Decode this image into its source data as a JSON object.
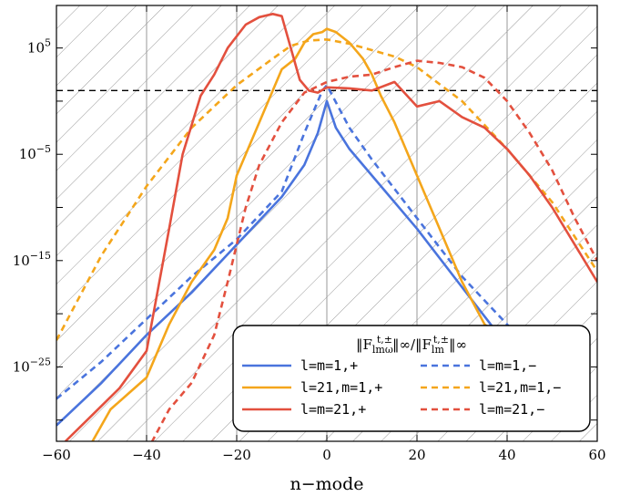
{
  "chart_data": {
    "type": "line",
    "title": "",
    "xlabel": "n−mode",
    "ylabel": "",
    "xlim": [
      -60,
      60
    ],
    "ylim_log10": [
      -32,
      9
    ],
    "y_scale": "log",
    "grid": true,
    "hatched_background": true,
    "reference_line": {
      "y_log10": 1,
      "style": "dashed",
      "color": "#000000"
    },
    "x_ticks": [
      {
        "value": -60,
        "label": "−60"
      },
      {
        "value": -40,
        "label": "−40"
      },
      {
        "value": -20,
        "label": "−20"
      },
      {
        "value": 0,
        "label": "0"
      },
      {
        "value": 20,
        "label": "20"
      },
      {
        "value": 40,
        "label": "40"
      },
      {
        "value": 60,
        "label": "60"
      }
    ],
    "y_ticks": [
      {
        "value_log10": 5,
        "base": "10",
        "exp": "5"
      },
      {
        "value_log10": -5,
        "base": "10",
        "exp": "−5"
      },
      {
        "value_log10": -15,
        "base": "10",
        "exp": "−15"
      },
      {
        "value_log10": -25,
        "base": "10",
        "exp": "−25"
      }
    ],
    "legend": {
      "placement": "lower-right",
      "title": "‖F_lmω^{t,±}‖∞/‖F_lm^{t,±}‖∞",
      "title_parts": {
        "bar1": "‖F",
        "sub1": "lmω",
        "sup1": "t,±",
        "mid": "‖∞/‖F",
        "sub2": "lm",
        "sup2": "t,±",
        "end": "‖∞"
      }
    },
    "series": [
      {
        "name": "l=m=1,+",
        "color": "#4a74dd",
        "dash": "solid",
        "x": [
          -60,
          -50,
          -40,
          -30,
          -20,
          -10,
          -5,
          -2,
          0,
          2,
          5,
          10,
          20,
          30,
          40,
          45
        ],
        "y_log10": [
          -30.5,
          -26.5,
          -22,
          -18,
          -13.5,
          -9,
          -6,
          -3,
          0,
          -2.5,
          -4.5,
          -7,
          -12,
          -17.5,
          -23,
          -26
        ]
      },
      {
        "name": "l=m=1,−",
        "color": "#4a74dd",
        "dash": "dashed",
        "x": [
          -60,
          -50,
          -40,
          -30,
          -20,
          -10,
          -5,
          -1,
          0,
          5,
          10,
          20,
          30,
          40,
          45
        ],
        "y_log10": [
          -28,
          -24.5,
          -20.5,
          -16.5,
          -13,
          -8.5,
          -3,
          1,
          1.5,
          -2.5,
          -5.5,
          -11,
          -16.5,
          -21,
          -23.5
        ]
      },
      {
        "name": "l=21,m=1,+",
        "color": "#f4a61b",
        "dash": "solid",
        "x": [
          -52,
          -48,
          -44,
          -40,
          -35,
          -30,
          -25,
          -22,
          -20,
          -15,
          -10,
          -7,
          -5,
          -3,
          -1,
          0,
          2,
          5,
          8,
          10,
          12,
          15,
          20,
          25,
          30,
          35,
          38,
          40,
          45,
          50,
          52
        ],
        "y_log10": [
          -32,
          -29,
          -27.5,
          -26,
          -21,
          -17,
          -14,
          -11,
          -7,
          -2,
          3,
          4,
          5.5,
          6.3,
          6.5,
          6.8,
          6.5,
          5.5,
          4,
          2.5,
          0.5,
          -2,
          -7,
          -12,
          -17,
          -21,
          -22,
          -23,
          -27,
          -30,
          -31
        ]
      },
      {
        "name": "l=21,m=1,−",
        "color": "#f4a61b",
        "dash": "dashed",
        "x": [
          -60,
          -50,
          -40,
          -30,
          -20,
          -12,
          -8,
          -4,
          0,
          5,
          10,
          15,
          20,
          30,
          40,
          50,
          60
        ],
        "y_log10": [
          -22.5,
          -14.5,
          -8,
          -2.5,
          1.5,
          4,
          5.2,
          5.7,
          5.8,
          5.4,
          4.8,
          4.2,
          3.2,
          0,
          -4.5,
          -9.5,
          -16
        ]
      },
      {
        "name": "l=m=21,+",
        "color": "#e3503e",
        "dash": "solid",
        "x": [
          -58,
          -52,
          -46,
          -40,
          -35,
          -32,
          -28,
          -25,
          -22,
          -18,
          -15,
          -12,
          -10,
          -8,
          -6,
          -4,
          -2,
          0,
          5,
          10,
          15,
          20,
          25,
          30,
          35,
          40,
          45,
          50,
          55,
          60
        ],
        "y_log10": [
          -32,
          -29.5,
          -27,
          -23.5,
          -12,
          -5,
          0.5,
          2.5,
          5,
          7.2,
          7.9,
          8.2,
          8,
          5,
          2,
          1,
          0.8,
          1.3,
          1.2,
          1,
          1.8,
          -0.5,
          0,
          -1.5,
          -2.5,
          -4.5,
          -7,
          -10,
          -13.5,
          -17
        ]
      },
      {
        "name": "l=m=21,−",
        "color": "#e3503e",
        "dash": "dashed",
        "x": [
          -40,
          -35,
          -30,
          -25,
          -22,
          -18,
          -15,
          -10,
          -5,
          0,
          5,
          10,
          15,
          20,
          25,
          30,
          35,
          40,
          45,
          50,
          55,
          60
        ],
        "y_log10": [
          -33,
          -29,
          -26.5,
          -22,
          -17,
          -10,
          -6,
          -2,
          0.8,
          1.8,
          2.3,
          2.5,
          3.2,
          3.8,
          3.6,
          3.2,
          2.2,
          0,
          -3,
          -6.5,
          -11,
          -15
        ]
      }
    ]
  }
}
